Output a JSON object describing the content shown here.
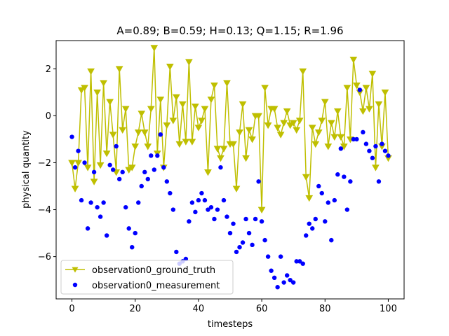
{
  "chart_data": {
    "type": "scatter",
    "title": "A=0.89; B=0.59; H=0.13; Q=1.15; R=1.96",
    "xlabel": "timesteps",
    "ylabel": "physical quantity",
    "xlim": [
      -5,
      105
    ],
    "ylim": [
      -7.8,
      3.2
    ],
    "xticks": [
      0,
      20,
      40,
      60,
      80,
      100
    ],
    "yticks": [
      -6,
      -4,
      -2,
      0,
      2
    ],
    "grid": false,
    "legend_position": "lower-left",
    "series": [
      {
        "name": "observation0_ground_truth",
        "type": "line",
        "color": "#bfbf00",
        "marker": "triangle-down",
        "x": [
          0,
          1,
          2,
          3,
          4,
          5,
          6,
          7,
          8,
          9,
          10,
          11,
          12,
          13,
          14,
          15,
          16,
          17,
          18,
          19,
          20,
          21,
          22,
          23,
          24,
          25,
          26,
          27,
          28,
          29,
          30,
          31,
          32,
          33,
          34,
          35,
          36,
          37,
          38,
          39,
          40,
          41,
          42,
          43,
          44,
          45,
          46,
          47,
          48,
          49,
          50,
          51,
          52,
          53,
          54,
          55,
          56,
          57,
          58,
          59,
          60,
          61,
          62,
          63,
          64,
          65,
          66,
          67,
          68,
          69,
          70,
          71,
          72,
          73,
          74,
          75,
          76,
          77,
          78,
          79,
          80,
          81,
          82,
          83,
          84,
          85,
          86,
          87,
          88,
          89,
          90,
          91,
          92,
          93,
          94,
          95,
          96,
          97,
          98,
          99,
          100
        ],
        "y": [
          -2.0,
          -3.1,
          -2.0,
          1.1,
          1.2,
          -2.2,
          1.9,
          -2.8,
          1.0,
          -2.1,
          1.4,
          -1.6,
          0.6,
          -0.8,
          -2.4,
          2.0,
          -0.6,
          0.3,
          -2.3,
          -2.2,
          -1.3,
          -0.7,
          0.1,
          -0.7,
          -1.3,
          0.3,
          2.9,
          -1.6,
          0.7,
          -2.2,
          -0.4,
          2.1,
          -0.2,
          0.8,
          -1.2,
          0.5,
          -1.1,
          2.3,
          -1.1,
          0.4,
          -0.5,
          -0.2,
          0.3,
          -2.4,
          0.7,
          1.3,
          -1.4,
          -1.8,
          -1.4,
          1.4,
          -1.2,
          -1.2,
          -3.1,
          -0.7,
          0.5,
          -1.8,
          -0.6,
          -1.0,
          0.0,
          0.0,
          -4.0,
          1.2,
          -0.4,
          0.3,
          0.3,
          -0.5,
          -0.8,
          -0.3,
          0.2,
          -0.4,
          -0.3,
          -0.6,
          -0.2,
          1.9,
          -2.6,
          -3.5,
          -0.5,
          -1.2,
          -0.7,
          -0.2,
          0.6,
          -1.3,
          -0.3,
          -0.9,
          0.2,
          -0.9,
          -1.3,
          1.2,
          -1.0,
          2.4,
          1.3,
          1.0,
          0.2,
          1.2,
          0.3,
          1.8,
          -2.2,
          0.5,
          -1.3,
          1.0,
          -1.8
        ]
      },
      {
        "name": "observation0_measurement",
        "type": "scatter",
        "color": "#0000ff",
        "marker": "circle",
        "x": [
          0,
          1,
          2,
          3,
          4,
          5,
          6,
          7,
          8,
          9,
          10,
          11,
          12,
          13,
          14,
          15,
          16,
          17,
          18,
          19,
          20,
          21,
          22,
          23,
          24,
          25,
          26,
          27,
          28,
          29,
          30,
          31,
          32,
          33,
          34,
          35,
          36,
          37,
          38,
          39,
          40,
          41,
          42,
          43,
          44,
          45,
          46,
          47,
          48,
          49,
          50,
          51,
          52,
          53,
          54,
          55,
          56,
          57,
          58,
          59,
          60,
          61,
          62,
          63,
          64,
          65,
          66,
          67,
          68,
          69,
          70,
          71,
          72,
          73,
          74,
          75,
          76,
          77,
          78,
          79,
          80,
          81,
          82,
          83,
          84,
          85,
          86,
          87,
          88,
          89,
          90,
          91,
          92,
          93,
          94,
          95,
          96,
          97,
          98,
          99,
          100
        ],
        "y": [
          -0.9,
          -2.2,
          -1.5,
          -3.6,
          -2.0,
          -4.8,
          -3.7,
          -2.4,
          -3.9,
          -4.3,
          -3.7,
          -5.1,
          -2.1,
          -2.3,
          -1.3,
          -2.7,
          -2.4,
          -3.9,
          -4.8,
          -5.6,
          -5.0,
          -3.7,
          -3.0,
          -2.4,
          -2.7,
          -1.7,
          -2.3,
          -1.7,
          -0.8,
          -2.2,
          -2.8,
          -3.3,
          -4.0,
          -5.8,
          -6.3,
          -6.2,
          -6.1,
          -4.5,
          -3.7,
          -4.1,
          -3.6,
          -3.3,
          -3.6,
          -4.0,
          -3.9,
          -4.4,
          -4.0,
          -2.2,
          -3.6,
          -4.3,
          -5.0,
          -4.6,
          -5.8,
          -5.6,
          -5.4,
          -4.4,
          -5.0,
          -5.5,
          -4.4,
          -2.8,
          -4.5,
          -5.3,
          -6.0,
          -6.6,
          -6.9,
          -7.3,
          -6.0,
          -7.1,
          -6.8,
          -7.0,
          -7.1,
          -6.2,
          -6.2,
          -6.3,
          -5.1,
          -4.6,
          -4.8,
          -4.4,
          -3.0,
          -3.3,
          -4.5,
          -3.7,
          -5.3,
          -3.6,
          -2.5,
          -1.4,
          -2.6,
          -4.0,
          -2.8,
          -1.0,
          -1.0,
          1.1,
          -0.7,
          -1.2,
          -1.5,
          -1.8,
          -1.3,
          -2.8,
          -1.2,
          -1.5,
          -1.7
        ]
      }
    ]
  }
}
